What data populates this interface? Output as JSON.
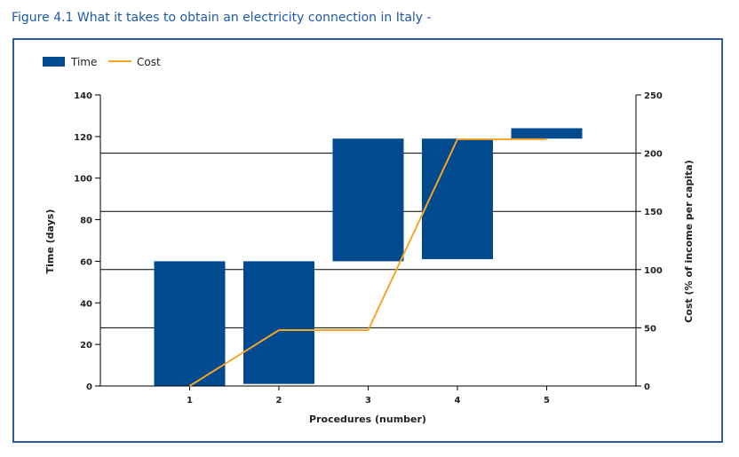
{
  "figure_title": "Figure 4.1 What it takes to obtain an electricity connection in Italy -",
  "colors": {
    "time": "#004a8f",
    "cost": "#f5a623",
    "title": "#1f5aa6",
    "frame": "#2c5d9a"
  },
  "chart_data": {
    "type": "bar",
    "legend_placement": "top-left",
    "categories": [
      "1",
      "2",
      "3",
      "4",
      "5"
    ],
    "xlabel": "Procedures (number)",
    "ylabel_left": "Time (days)",
    "ylabel_right": "Cost (% of income per capita)",
    "ylim_left": [
      0,
      140
    ],
    "ylim_right": [
      0,
      250
    ],
    "yticks_left": [
      "0",
      "20",
      "40",
      "60",
      "80",
      "100",
      "120",
      "140"
    ],
    "yticks_right": [
      "0",
      "50",
      "100",
      "150",
      "200",
      "250"
    ],
    "grid": "horizontal lines at right-axis ticks",
    "series": [
      {
        "name": "Time",
        "kind": "floating-bar",
        "ranges": [
          [
            0,
            60
          ],
          [
            1,
            60
          ],
          [
            60,
            119
          ],
          [
            61,
            119
          ],
          [
            119,
            124
          ]
        ]
      },
      {
        "name": "Cost",
        "kind": "line",
        "values": [
          0,
          48,
          48,
          212,
          212
        ]
      }
    ]
  }
}
